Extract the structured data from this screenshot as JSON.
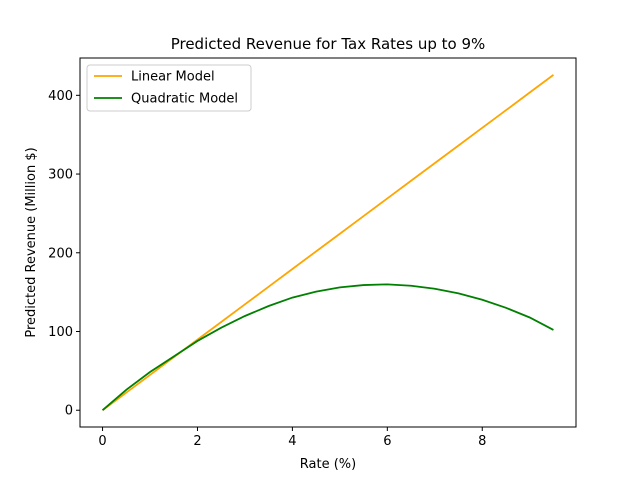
{
  "chart_data": {
    "type": "line",
    "title": "Predicted Revenue for Tax Rates up to 9%",
    "xlabel": "Rate (%)",
    "ylabel": "Predicted Revenue (Million $)",
    "xlim": [
      -0.475,
      9.975
    ],
    "ylim": [
      -21.3,
      447.4
    ],
    "xticks": [
      0,
      2,
      4,
      6,
      8
    ],
    "yticks": [
      0,
      100,
      200,
      300,
      400
    ],
    "grid": false,
    "legend_position": "upper left",
    "x": [
      0,
      0.5,
      1,
      1.5,
      2,
      2.5,
      3,
      3.5,
      4,
      4.5,
      5,
      5.5,
      6,
      6.5,
      7,
      7.5,
      8,
      8.5,
      9,
      9.5
    ],
    "series": [
      {
        "name": "Linear Model",
        "color": "#ffa500",
        "values": [
          0,
          22.4,
          44.8,
          67.3,
          89.7,
          112.1,
          134.5,
          156.9,
          179.4,
          201.8,
          224.2,
          246.6,
          269.0,
          291.5,
          313.9,
          336.3,
          358.7,
          381.1,
          403.6,
          426.0
        ]
      },
      {
        "name": "Quadratic Model",
        "color": "#008000",
        "values": [
          0,
          25.9,
          48.6,
          68.2,
          88.0,
          104.8,
          119.7,
          132.4,
          143.1,
          150.6,
          156.0,
          159.0,
          159.9,
          158.1,
          154.3,
          148.4,
          140.3,
          130.1,
          117.8,
          102.0
        ]
      }
    ]
  }
}
